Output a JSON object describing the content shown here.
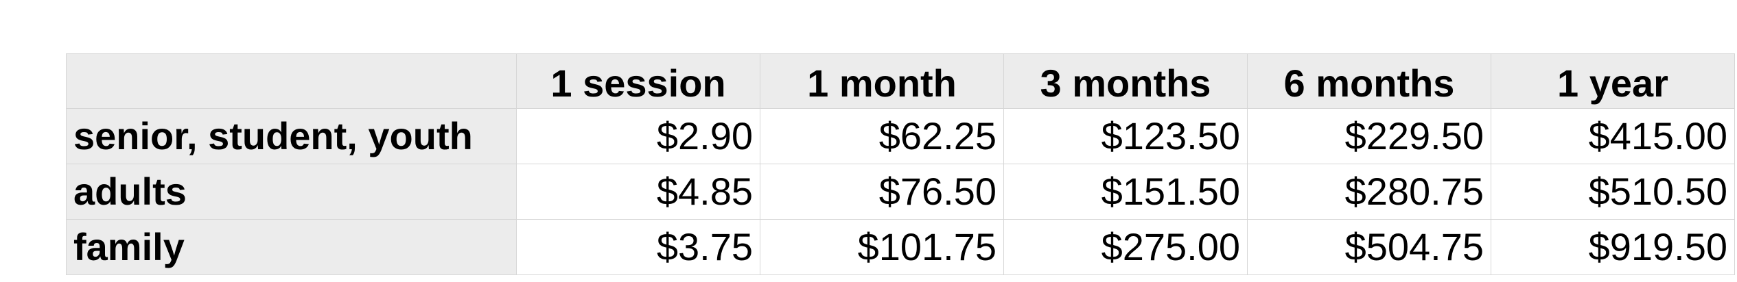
{
  "table": {
    "columns": [
      "1 session",
      "1 month",
      "3 months",
      "6 months",
      "1 year"
    ],
    "rows": [
      {
        "label": "senior, student, youth",
        "values": [
          "$2.90",
          "$62.25",
          "$123.50",
          "$229.50",
          "$415.00"
        ]
      },
      {
        "label": "adults",
        "values": [
          "$4.85",
          "$76.50",
          "$151.50",
          "$280.75",
          "$510.50"
        ]
      },
      {
        "label": "family",
        "values": [
          "$3.75",
          "$101.75",
          "$275.00",
          "$504.75",
          "$919.50"
        ]
      }
    ]
  }
}
